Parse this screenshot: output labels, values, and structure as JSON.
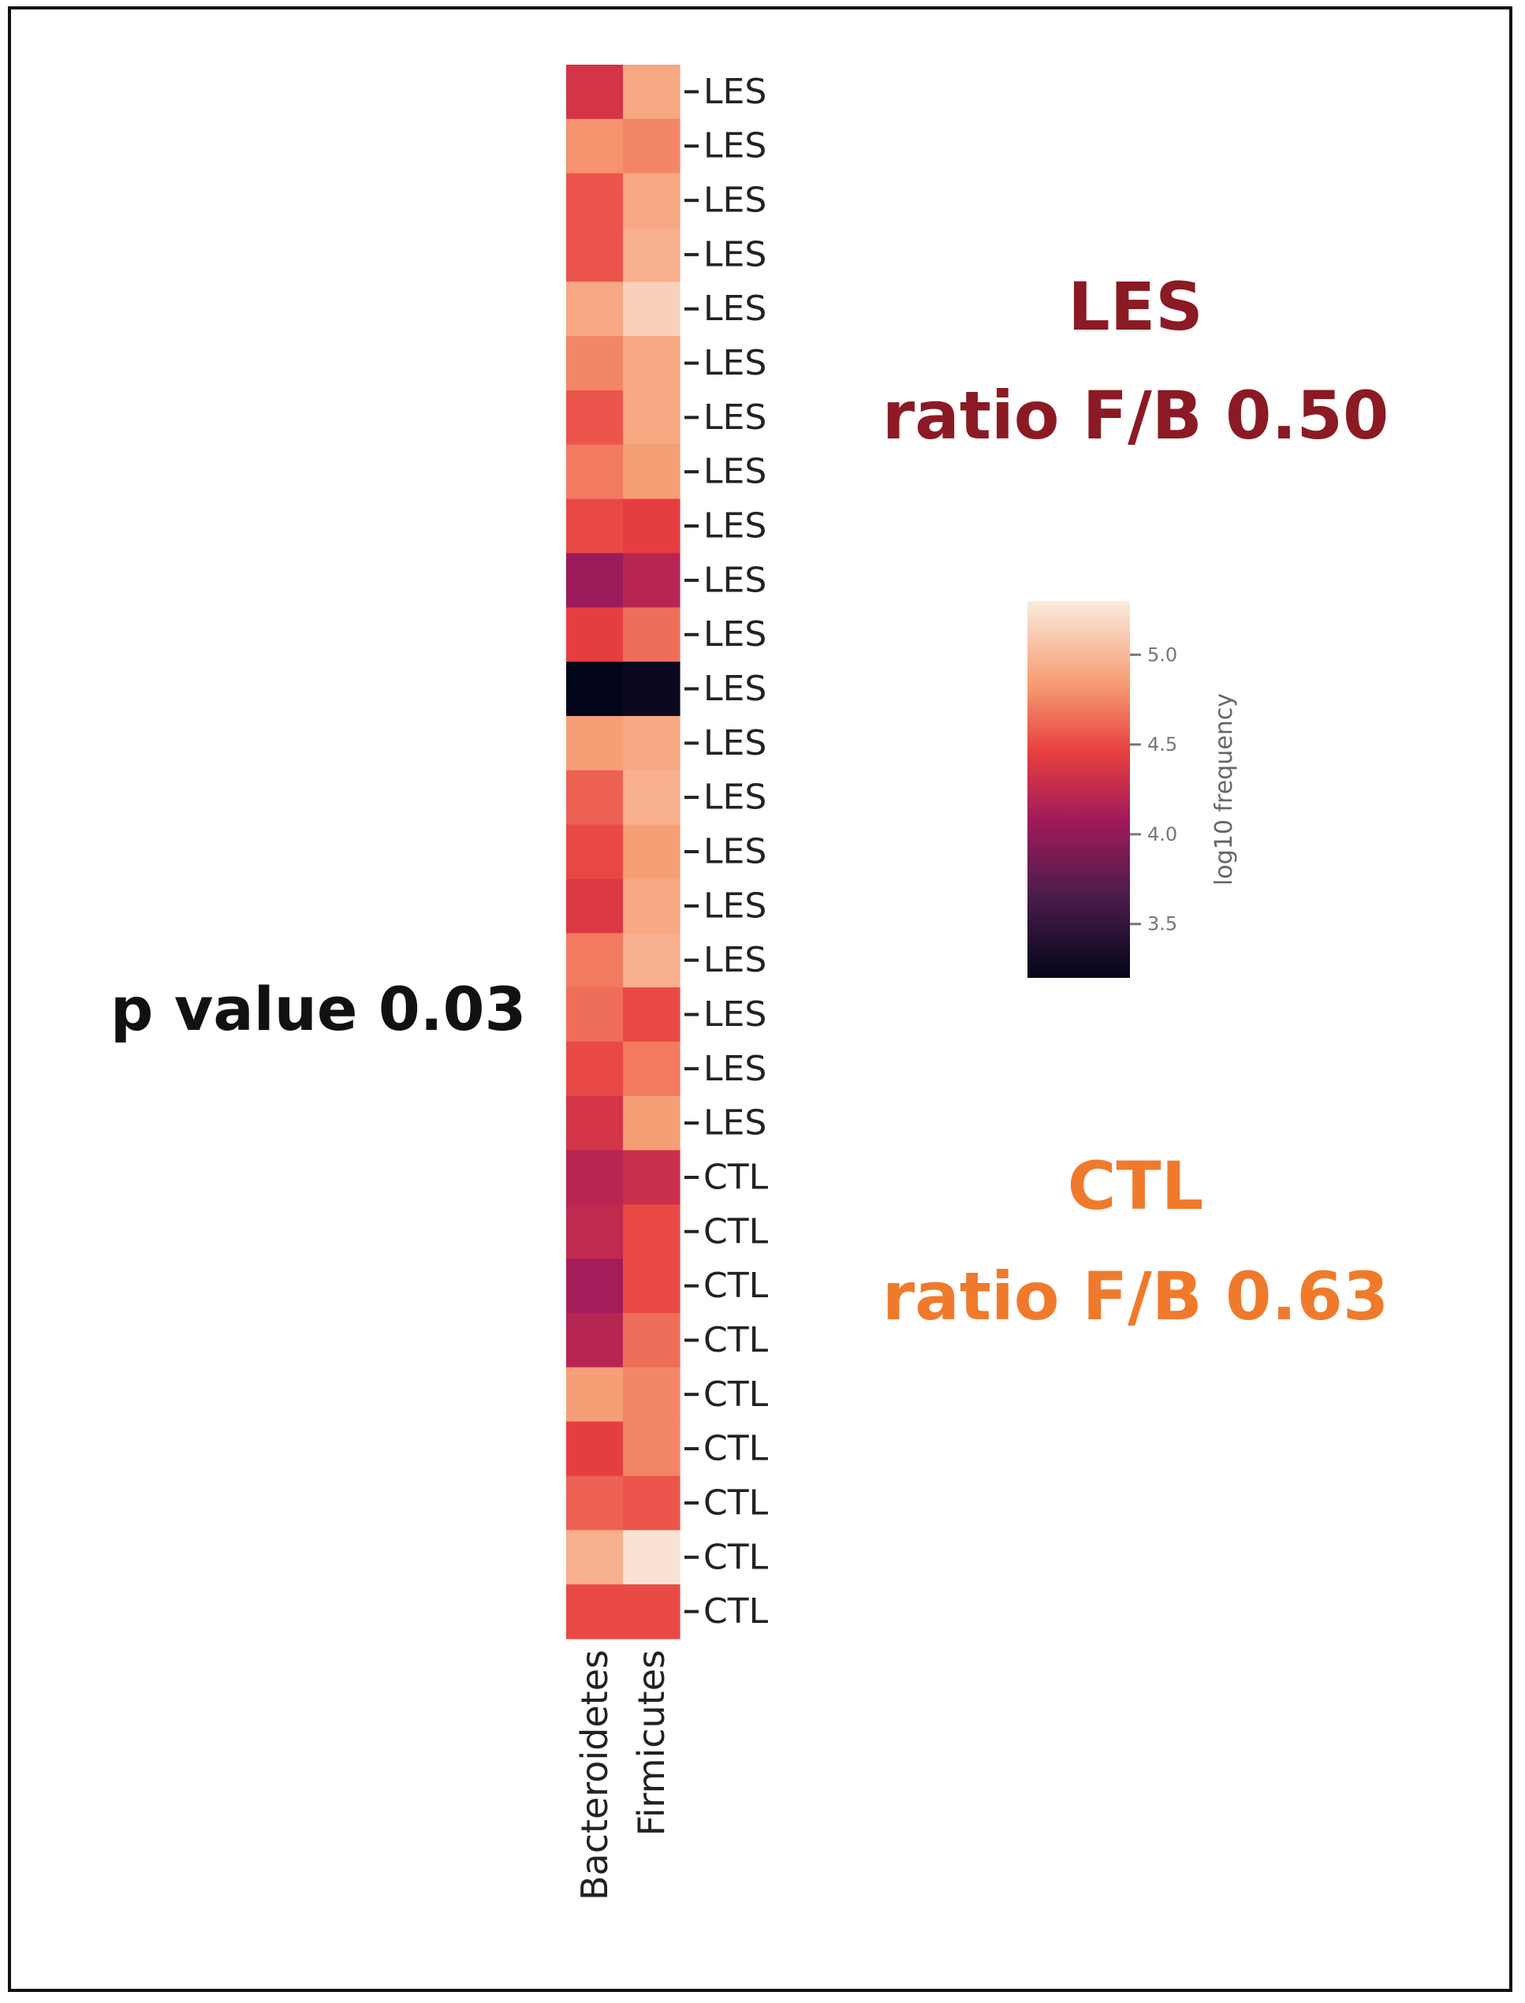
{
  "chart_data": {
    "type": "heatmap",
    "columns": [
      "Bacteroidetes",
      "Firmicutes"
    ],
    "rows": [
      "LES",
      "LES",
      "LES",
      "LES",
      "LES",
      "LES",
      "LES",
      "LES",
      "LES",
      "LES",
      "LES",
      "LES",
      "LES",
      "LES",
      "LES",
      "LES",
      "LES",
      "LES",
      "LES",
      "LES",
      "CTL",
      "CTL",
      "CTL",
      "CTL",
      "CTL",
      "CTL",
      "CTL",
      "CTL",
      "CTL"
    ],
    "values": [
      [
        4.35,
        4.9
      ],
      [
        4.8,
        4.75
      ],
      [
        4.55,
        4.9
      ],
      [
        4.55,
        4.95
      ],
      [
        4.9,
        5.15
      ],
      [
        4.75,
        4.9
      ],
      [
        4.55,
        4.9
      ],
      [
        4.7,
        4.85
      ],
      [
        4.5,
        4.45
      ],
      [
        4.05,
        4.2
      ],
      [
        4.45,
        4.65
      ],
      [
        3.2,
        3.25
      ],
      [
        4.85,
        4.9
      ],
      [
        4.6,
        4.95
      ],
      [
        4.5,
        4.85
      ],
      [
        4.4,
        4.9
      ],
      [
        4.7,
        4.95
      ],
      [
        4.65,
        4.5
      ],
      [
        4.5,
        4.7
      ],
      [
        4.35,
        4.85
      ],
      [
        4.2,
        4.3
      ],
      [
        4.25,
        4.5
      ],
      [
        4.1,
        4.5
      ],
      [
        4.2,
        4.65
      ],
      [
        4.85,
        4.75
      ],
      [
        4.45,
        4.75
      ],
      [
        4.6,
        4.55
      ],
      [
        4.95,
        5.25
      ],
      [
        4.5,
        4.5
      ]
    ],
    "colorbar": {
      "label": "log10 frequency",
      "ticks": [
        "3.5",
        "4.0",
        "4.5",
        "5.0"
      ],
      "range": [
        3.2,
        5.3
      ]
    }
  },
  "annotations": {
    "les_label": "LES",
    "les_ratio": "ratio F/B 0.50",
    "ctl_label": "CTL",
    "ctl_ratio": "ratio F/B 0.63",
    "p_value": "p value 0.03"
  },
  "colors": {
    "les": "#8b1a24",
    "ctl": "#f07a2c"
  }
}
